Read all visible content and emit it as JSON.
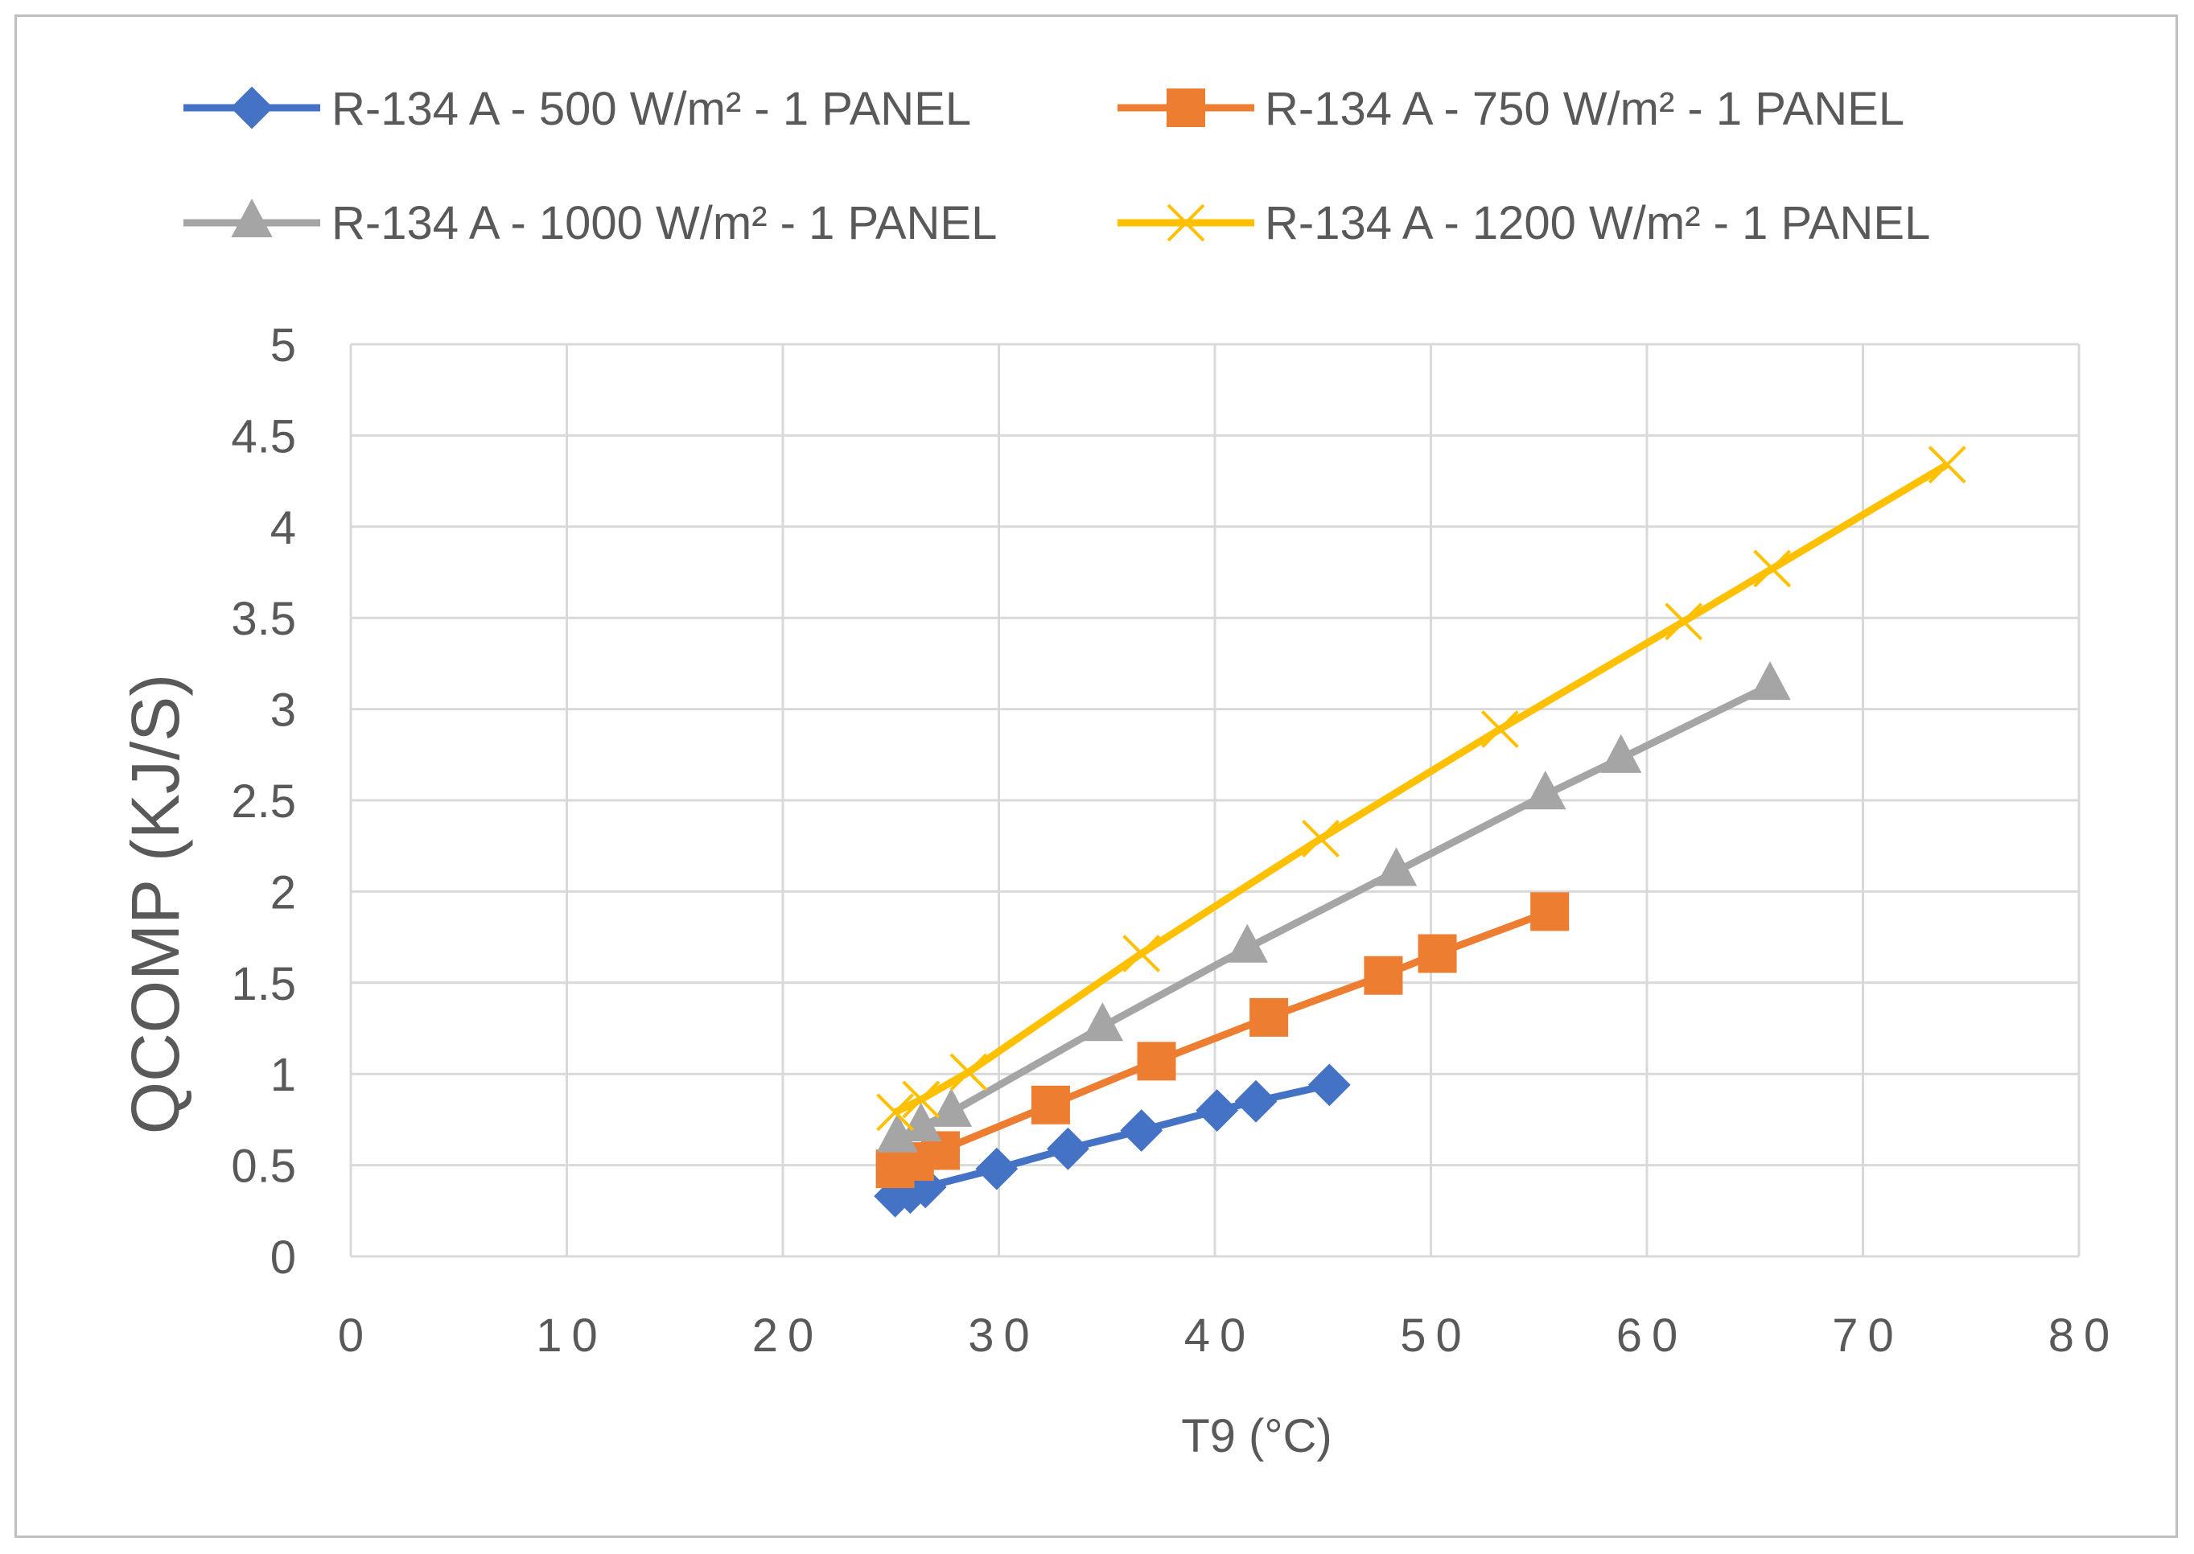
{
  "chart_data": {
    "type": "line",
    "title": "",
    "xlabel": "T9 (°C)",
    "ylabel": "QCOMP  (KJ/S)",
    "xlim": [
      0,
      80
    ],
    "ylim": [
      0,
      5
    ],
    "x_ticks": [
      "0",
      "10",
      "20",
      "30",
      "40",
      "50",
      "60",
      "70",
      "80"
    ],
    "y_ticks": [
      "0",
      "0.5",
      "1",
      "1.5",
      "2",
      "2.5",
      "3",
      "3.5",
      "4",
      "4.5",
      "5"
    ],
    "grid": true,
    "legend_position": "top",
    "series": [
      {
        "name": "R-134 A - 500 W/m² - 1 PANEL",
        "color": "#4472C4",
        "marker": "diamond",
        "x": [
          25.2,
          25.9,
          26.6,
          29.9,
          33.2,
          36.6,
          40.1,
          41.9,
          45.3
        ],
        "y": [
          0.33,
          0.35,
          0.38,
          0.48,
          0.59,
          0.69,
          0.8,
          0.85,
          0.94
        ]
      },
      {
        "name": "R-134 A - 750 W/m² - 1 PANEL",
        "color": "#ED7D31",
        "marker": "square",
        "x": [
          25.2,
          26.1,
          27.3,
          32.4,
          37.3,
          42.5,
          47.8,
          50.3,
          55.5
        ],
        "y": [
          0.48,
          0.52,
          0.58,
          0.83,
          1.07,
          1.31,
          1.54,
          1.66,
          1.89
        ]
      },
      {
        "name": "R-134 A - 1000 W/m² - 1 PANEL",
        "color": "#A5A5A5",
        "marker": "triangle",
        "x": [
          25.3,
          26.4,
          27.8,
          34.8,
          41.5,
          48.4,
          55.3,
          58.8,
          65.7
        ],
        "y": [
          0.65,
          0.71,
          0.79,
          1.26,
          1.69,
          2.11,
          2.53,
          2.73,
          3.13
        ]
      },
      {
        "name": "R-134 A - 1200 W/m² - 1 PANEL",
        "color": "#FFC000",
        "marker": "x",
        "x": [
          25.2,
          26.4,
          28.6,
          36.6,
          44.9,
          53.2,
          61.7,
          65.8,
          73.9
        ],
        "y": [
          0.79,
          0.86,
          1.01,
          1.66,
          2.29,
          2.89,
          3.48,
          3.77,
          4.34
        ]
      }
    ]
  }
}
